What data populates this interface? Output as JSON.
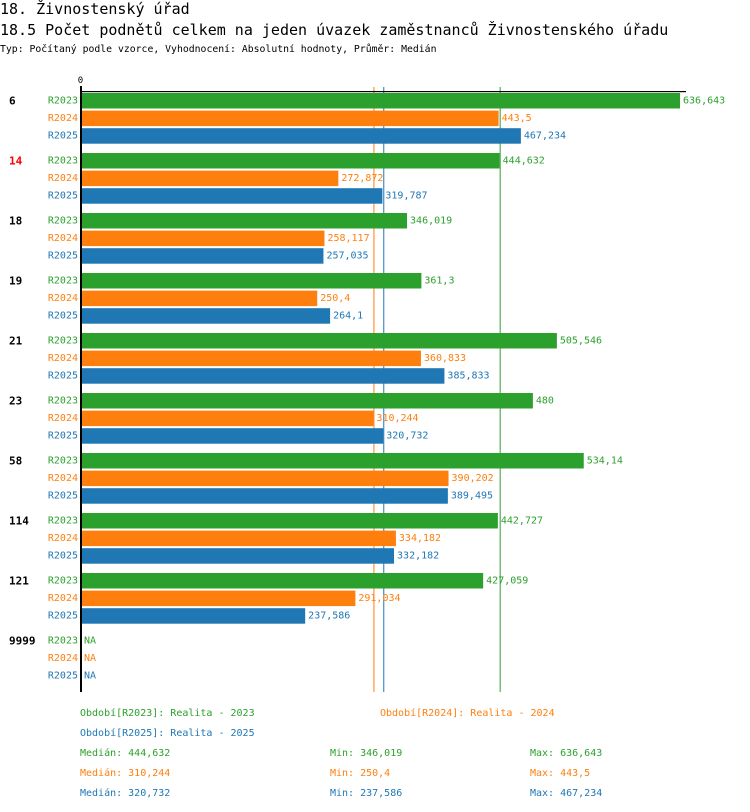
{
  "header": {
    "section_title": "18. Živnostenský úřad",
    "chart_title": "18.5 Počet podnětů celkem na jeden úvazek zaměstnanců Živnostenského úřadu",
    "meta": "Typ: Počítaný podle vzorce, Vyhodnocení: Absolutní hodnoty, Průměr: Medián"
  },
  "chart_data": {
    "type": "bar",
    "orientation": "horizontal",
    "title": "18.5 Počet podnětů celkem na jeden úvazek zaměstnanců Živnostenského úřadu",
    "xlabel": "",
    "ylabel": "",
    "x_tick_labels": [
      "0"
    ],
    "xlim": [
      0,
      643
    ],
    "grid": false,
    "reference_lines": "median of each series",
    "categories": [
      "6",
      "14",
      "18",
      "19",
      "21",
      "23",
      "58",
      "114",
      "121",
      "9999"
    ],
    "highlight_category": "14",
    "highlight_color": "#ff0000",
    "series": [
      {
        "name": "R2023",
        "color": "#2ca02c",
        "median": 444.632,
        "values": [
          636.643,
          444.632,
          346.019,
          361.3,
          505.546,
          480,
          534.14,
          442.727,
          427.059,
          null
        ],
        "labels": [
          "636,643",
          "444,632",
          "346,019",
          "361,3",
          "505,546",
          "480",
          "534,14",
          "442,727",
          "427,059",
          "NA"
        ]
      },
      {
        "name": "R2024",
        "color": "#ff7f0e",
        "median": 310.244,
        "values": [
          443.5,
          272.872,
          258.117,
          250.4,
          360.833,
          310.244,
          390.202,
          334.182,
          291.034,
          null
        ],
        "labels": [
          "443,5",
          "272,872",
          "258,117",
          "250,4",
          "360,833",
          "310,244",
          "390,202",
          "334,182",
          "291,034",
          "NA"
        ]
      },
      {
        "name": "R2025",
        "color": "#1f77b4",
        "median": 320.732,
        "values": [
          467.234,
          319.787,
          257.035,
          264.1,
          385.833,
          320.732,
          389.495,
          332.182,
          237.586,
          null
        ],
        "labels": [
          "467,234",
          "319,787",
          "257,035",
          "264,1",
          "385,833",
          "320,732",
          "389,495",
          "332,182",
          "237,586",
          "NA"
        ]
      }
    ]
  },
  "legend": {
    "periods": [
      {
        "text": "Období[R2023]: Realita - 2023",
        "color": "#2ca02c"
      },
      {
        "text": "Období[R2024]: Realita - 2024",
        "color": "#ff7f0e"
      },
      {
        "text": "Období[R2025]: Realita - 2025",
        "color": "#1f77b4"
      }
    ],
    "stat_labels": {
      "median": "Medián:",
      "min": "Min:",
      "max": "Max:"
    },
    "stats": [
      {
        "series": "R2023",
        "median": "444,632",
        "min": "346,019",
        "max": "636,643"
      },
      {
        "series": "R2024",
        "median": "310,244",
        "min": "250,4",
        "max": "443,5"
      },
      {
        "series": "R2025",
        "median": "320,732",
        "min": "237,586",
        "max": "467,234"
      }
    ]
  }
}
